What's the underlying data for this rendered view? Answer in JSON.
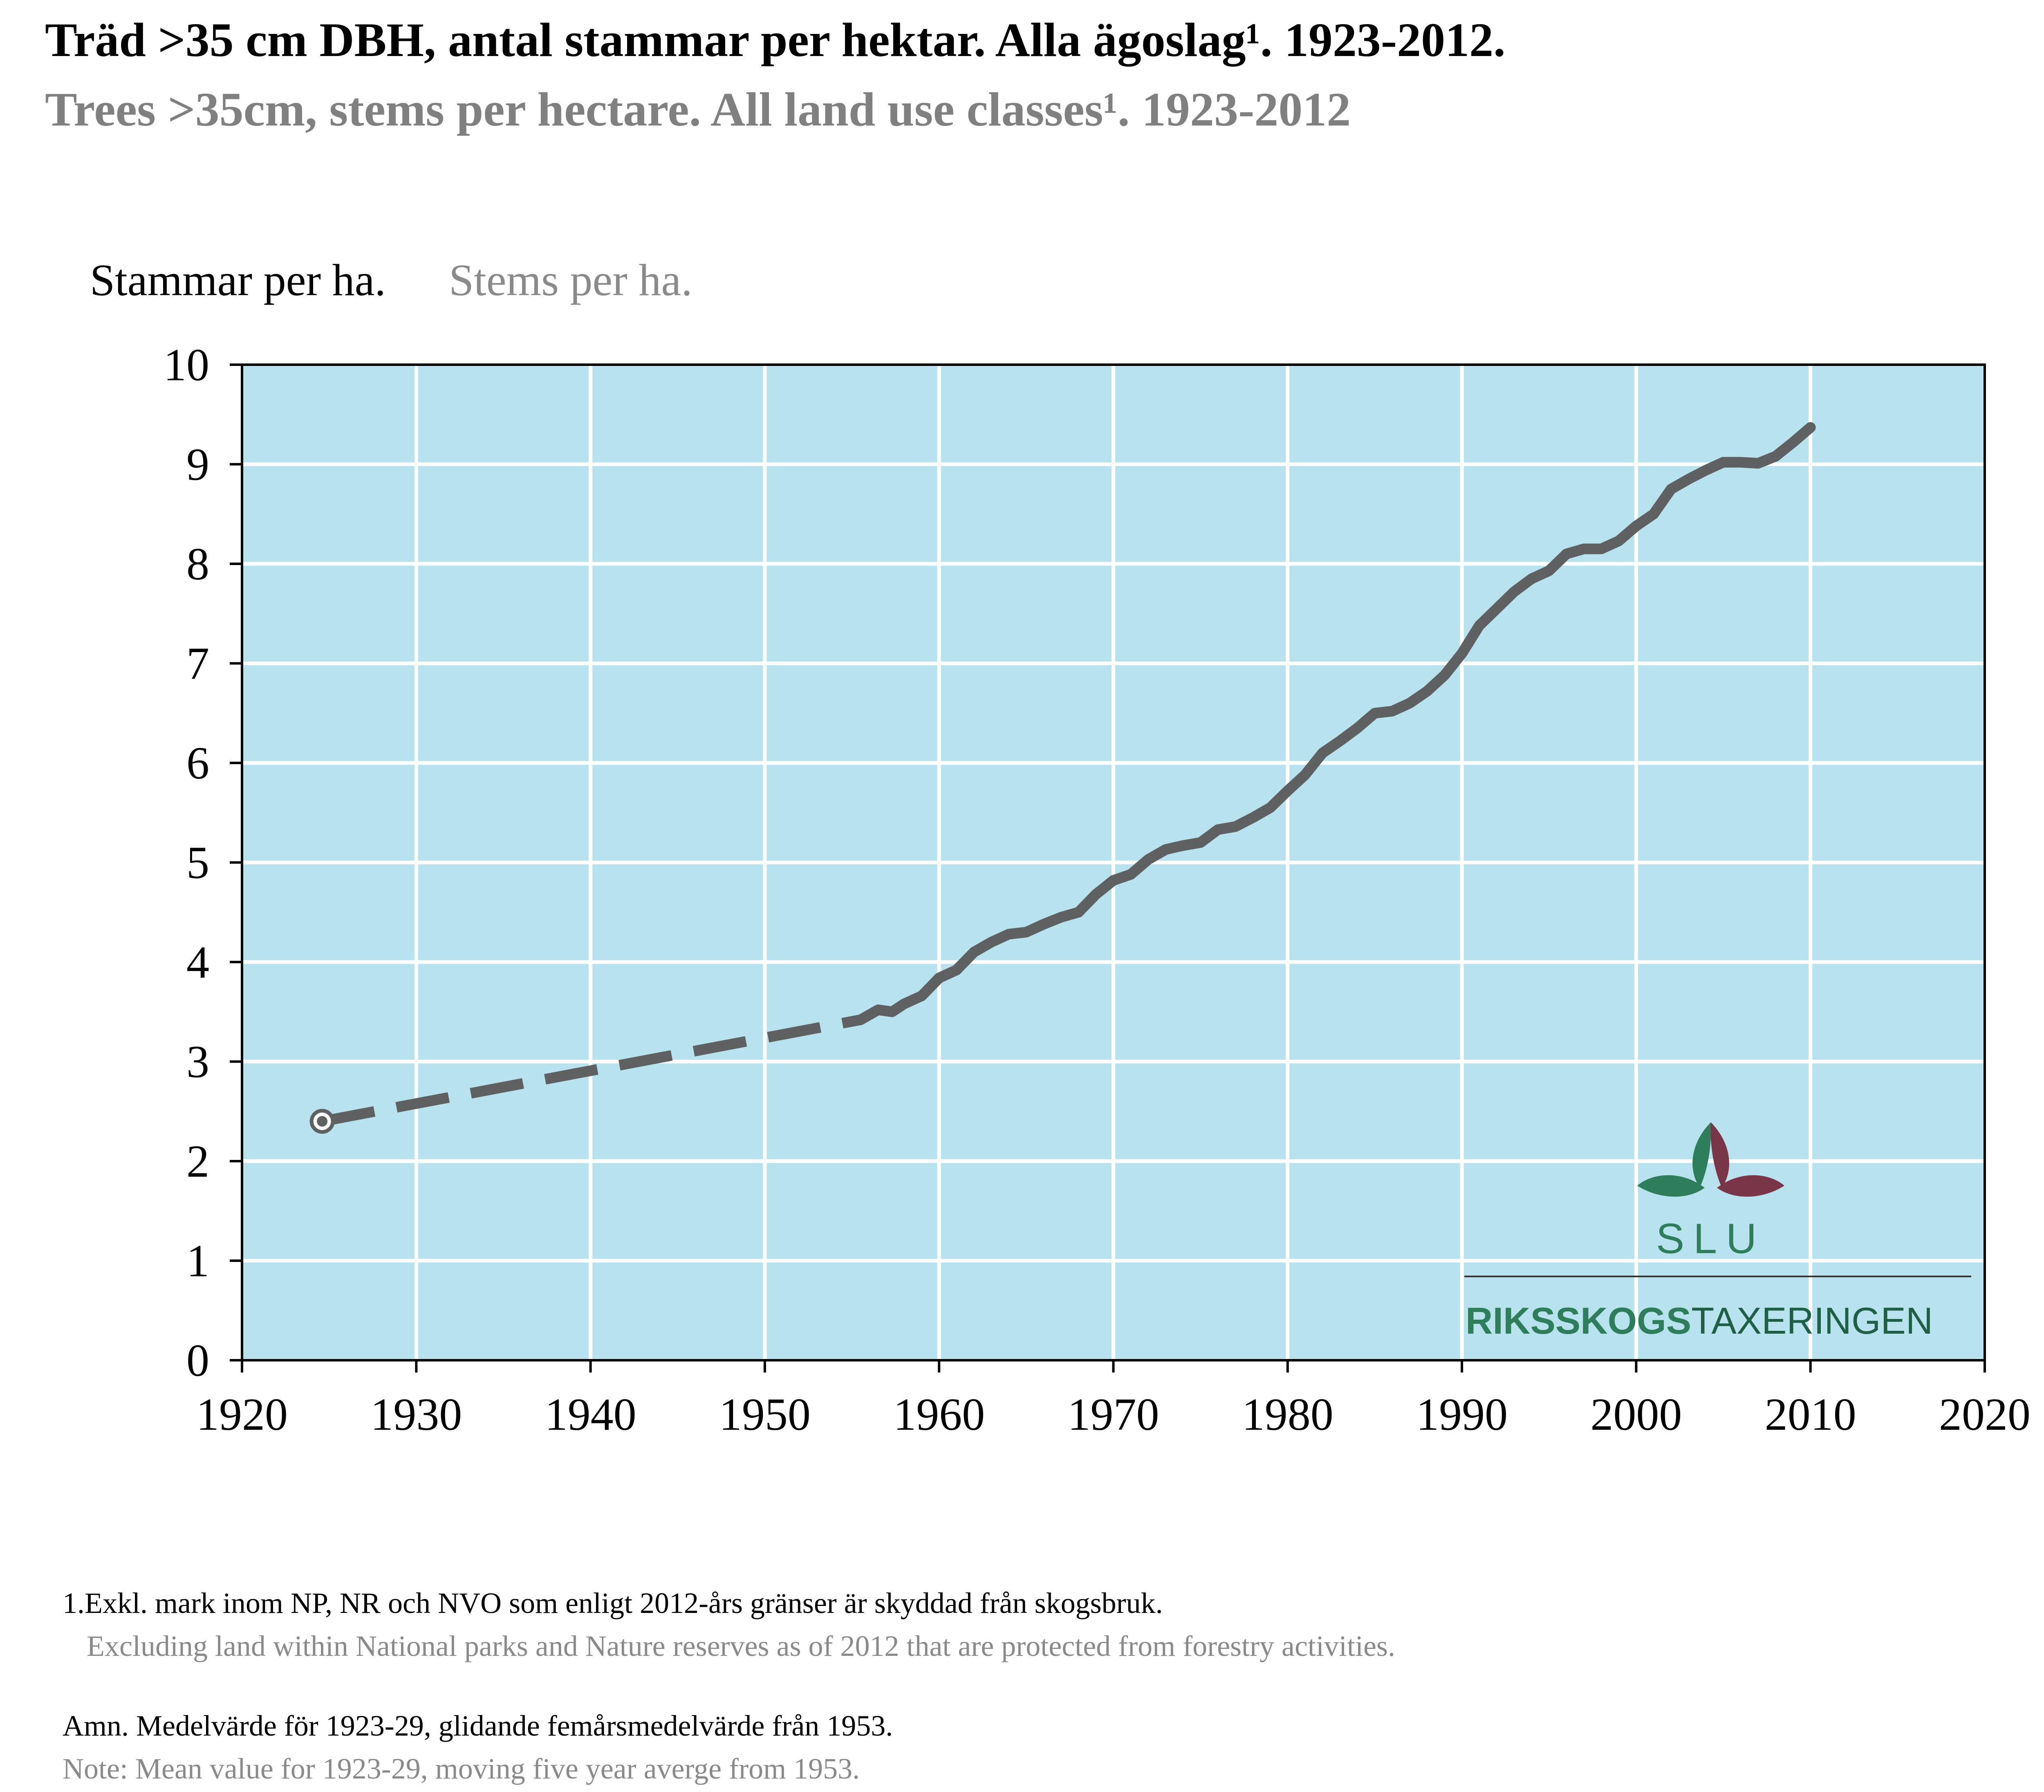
{
  "title_sv": "Träd >35 cm DBH, antal stammar per hektar. Alla ägoslag¹. 1923-2012.",
  "title_en": "Trees >35cm, stems per hectare. All land use classes¹. 1923-2012",
  "chart_data": {
    "type": "line",
    "ylabel_sv": "Stammar per ha.",
    "ylabel_en": "Stems per ha.",
    "xlim": [
      1920,
      2020
    ],
    "ylim": [
      0,
      10
    ],
    "x_ticks": [
      1920,
      1930,
      1940,
      1950,
      1960,
      1970,
      1980,
      1990,
      2000,
      2010,
      2020
    ],
    "y_ticks": [
      0,
      1,
      2,
      3,
      4,
      5,
      6,
      7,
      8,
      9,
      10
    ],
    "grid": true,
    "colors": {
      "plot_bg": "#b8e2ee",
      "grid": "#ffffff",
      "line": "#5f6062"
    },
    "series": [
      {
        "style": "dashed",
        "marker_at_start": true,
        "points": [
          [
            1924.6,
            2.4
          ],
          [
            1955.5,
            3.42
          ]
        ]
      },
      {
        "style": "solid",
        "points": [
          [
            1955.5,
            3.42
          ],
          [
            1956.5,
            3.52
          ],
          [
            1957.3,
            3.5
          ],
          [
            1958,
            3.58
          ],
          [
            1959,
            3.66
          ],
          [
            1960,
            3.84
          ],
          [
            1961,
            3.92
          ],
          [
            1962,
            4.1
          ],
          [
            1963,
            4.2
          ],
          [
            1964,
            4.28
          ],
          [
            1965,
            4.3
          ],
          [
            1966,
            4.38
          ],
          [
            1967,
            4.45
          ],
          [
            1968,
            4.5
          ],
          [
            1969,
            4.68
          ],
          [
            1970,
            4.82
          ],
          [
            1971,
            4.88
          ],
          [
            1972,
            5.03
          ],
          [
            1973,
            5.13
          ],
          [
            1974,
            5.17
          ],
          [
            1975,
            5.2
          ],
          [
            1976,
            5.33
          ],
          [
            1977,
            5.36
          ],
          [
            1978,
            5.45
          ],
          [
            1979,
            5.55
          ],
          [
            1980,
            5.72
          ],
          [
            1981,
            5.88
          ],
          [
            1982,
            6.1
          ],
          [
            1983,
            6.22
          ],
          [
            1984,
            6.35
          ],
          [
            1985,
            6.5
          ],
          [
            1986,
            6.52
          ],
          [
            1987,
            6.6
          ],
          [
            1988,
            6.72
          ],
          [
            1989,
            6.88
          ],
          [
            1990,
            7.1
          ],
          [
            1991,
            7.38
          ],
          [
            1992,
            7.55
          ],
          [
            1993,
            7.72
          ],
          [
            1994,
            7.85
          ],
          [
            1995,
            7.93
          ],
          [
            1996,
            8.1
          ],
          [
            1997,
            8.15
          ],
          [
            1998,
            8.15
          ],
          [
            1999,
            8.23
          ],
          [
            2000,
            8.38
          ],
          [
            2001,
            8.5
          ],
          [
            2002,
            8.75
          ],
          [
            2003,
            8.85
          ],
          [
            2004,
            8.94
          ],
          [
            2005,
            9.02
          ],
          [
            2006,
            9.02
          ],
          [
            2007,
            9.01
          ],
          [
            2008,
            9.08
          ],
          [
            2009,
            9.22
          ],
          [
            2010,
            9.37
          ]
        ]
      }
    ]
  },
  "logo": {
    "name": "SLU",
    "org_bold": "RIKSSKOGS",
    "org_light": "TAXERINGEN",
    "green": "#2e7d5b",
    "red": "#7a3648"
  },
  "footnotes": {
    "note1_sv": "1.Exkl. mark inom NP, NR och NVO som enligt 2012-års gränser är skyddad från skogsbruk.",
    "note1_en": "Excluding land within National parks and Nature reserves as of 2012 that are protected from forestry activities.",
    "note2_sv": "Amn. Medelvärde för 1923-29, glidande femårsmedelvärde från 1953.",
    "note2_en": "Note: Mean value for 1923-29, moving five year averge from 1953."
  }
}
